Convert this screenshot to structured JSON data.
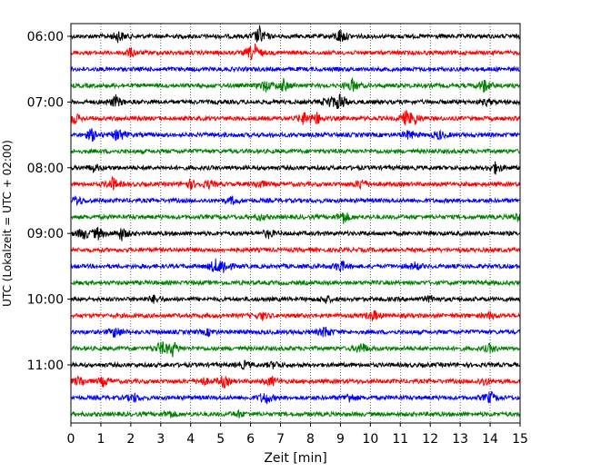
{
  "chart_data": {
    "type": "line",
    "title": "",
    "xlabel": "Zeit  [min]",
    "ylabel": "UTC (Lokalzeit = UTC + 02:00)",
    "xlim": [
      0,
      15
    ],
    "x_ticks": [
      "0",
      "1",
      "2",
      "3",
      "4",
      "5",
      "6",
      "7",
      "8",
      "9",
      "10",
      "11",
      "12",
      "13",
      "14",
      "15"
    ],
    "y_ticks": [
      "06:00",
      "07:00",
      "08:00",
      "09:00",
      "10:00",
      "11:00"
    ],
    "grid": "vertical dotted",
    "trace_interval_min": 15,
    "colors_cycle": [
      "#000000",
      "#ff0000",
      "#0000ff",
      "#008000"
    ],
    "traces": [
      {
        "start": "06:00",
        "color": "#000000",
        "events": [
          [
            1.6,
            2.0
          ],
          [
            6.3,
            3.2
          ],
          [
            9.0,
            2.6
          ]
        ]
      },
      {
        "start": "06:15",
        "color": "#ff0000",
        "events": [
          [
            6.1,
            3.6
          ],
          [
            2.0,
            1.4
          ]
        ]
      },
      {
        "start": "06:30",
        "color": "#0000ff",
        "events": []
      },
      {
        "start": "06:45",
        "color": "#008000",
        "events": [
          [
            6.5,
            2.0
          ],
          [
            7.1,
            2.0
          ],
          [
            9.4,
            2.2
          ],
          [
            13.8,
            2.2
          ]
        ]
      },
      {
        "start": "07:00",
        "color": "#000000",
        "events": [
          [
            1.5,
            2.0
          ],
          [
            8.6,
            1.8
          ],
          [
            9.0,
            3.0
          ],
          [
            13.9,
            1.0
          ]
        ]
      },
      {
        "start": "07:15",
        "color": "#ff0000",
        "events": [
          [
            0.1,
            2.0
          ],
          [
            7.8,
            2.2
          ],
          [
            8.2,
            2.0
          ],
          [
            11.2,
            2.4
          ],
          [
            11.5,
            1.6
          ]
        ]
      },
      {
        "start": "07:30",
        "color": "#0000ff",
        "events": [
          [
            0.7,
            2.0
          ],
          [
            1.6,
            2.4
          ],
          [
            11.3,
            1.6
          ],
          [
            12.3,
            1.4
          ]
        ]
      },
      {
        "start": "07:45",
        "color": "#008000",
        "events": []
      },
      {
        "start": "08:00",
        "color": "#000000",
        "events": [
          [
            0.8,
            1.2
          ],
          [
            14.2,
            2.0
          ]
        ]
      },
      {
        "start": "08:15",
        "color": "#ff0000",
        "events": [
          [
            1.4,
            2.2
          ],
          [
            4.0,
            1.4
          ],
          [
            4.6,
            1.2
          ],
          [
            6.3,
            1.4
          ],
          [
            9.7,
            1.8
          ]
        ]
      },
      {
        "start": "08:30",
        "color": "#0000ff",
        "events": [
          [
            0.2,
            1.6
          ],
          [
            5.4,
            1.2
          ]
        ]
      },
      {
        "start": "08:45",
        "color": "#008000",
        "events": [
          [
            6.3,
            1.0
          ],
          [
            9.1,
            2.2
          ],
          [
            14.9,
            1.2
          ]
        ]
      },
      {
        "start": "09:00",
        "color": "#000000",
        "events": [
          [
            0.4,
            2.0
          ],
          [
            0.9,
            2.0
          ],
          [
            1.7,
            2.2
          ],
          [
            6.6,
            1.4
          ]
        ]
      },
      {
        "start": "09:15",
        "color": "#ff0000",
        "events": []
      },
      {
        "start": "09:30",
        "color": "#0000ff",
        "events": [
          [
            4.8,
            2.0
          ],
          [
            5.1,
            2.4
          ],
          [
            9.0,
            2.0
          ],
          [
            11.5,
            1.2
          ]
        ]
      },
      {
        "start": "09:45",
        "color": "#008000",
        "events": []
      },
      {
        "start": "10:00",
        "color": "#000000",
        "events": [
          [
            2.8,
            1.2
          ],
          [
            8.5,
            1.2
          ],
          [
            12.0,
            1.0
          ]
        ]
      },
      {
        "start": "10:15",
        "color": "#ff0000",
        "events": [
          [
            6.4,
            1.2
          ],
          [
            10.1,
            1.8
          ],
          [
            14.0,
            1.0
          ]
        ]
      },
      {
        "start": "10:30",
        "color": "#0000ff",
        "events": [
          [
            1.5,
            2.0
          ],
          [
            4.6,
            1.0
          ],
          [
            8.5,
            2.0
          ]
        ]
      },
      {
        "start": "10:45",
        "color": "#008000",
        "events": [
          [
            3.0,
            2.2
          ],
          [
            3.4,
            2.4
          ],
          [
            9.7,
            2.0
          ],
          [
            14.0,
            1.4
          ]
        ]
      },
      {
        "start": "11:00",
        "color": "#000000",
        "events": [
          [
            5.8,
            1.2
          ],
          [
            6.8,
            1.2
          ]
        ]
      },
      {
        "start": "11:15",
        "color": "#ff0000",
        "events": [
          [
            0.3,
            1.8
          ],
          [
            1.1,
            1.6
          ],
          [
            4.4,
            1.4
          ],
          [
            5.1,
            2.0
          ],
          [
            6.7,
            1.6
          ],
          [
            13.8,
            1.4
          ]
        ]
      },
      {
        "start": "11:30",
        "color": "#0000ff",
        "events": [
          [
            2.1,
            1.4
          ],
          [
            6.5,
            2.2
          ],
          [
            9.3,
            1.6
          ],
          [
            14.0,
            2.0
          ]
        ]
      },
      {
        "start": "11:45",
        "color": "#008000",
        "events": [
          [
            3.3,
            1.2
          ],
          [
            5.6,
            1.0
          ]
        ]
      }
    ]
  }
}
